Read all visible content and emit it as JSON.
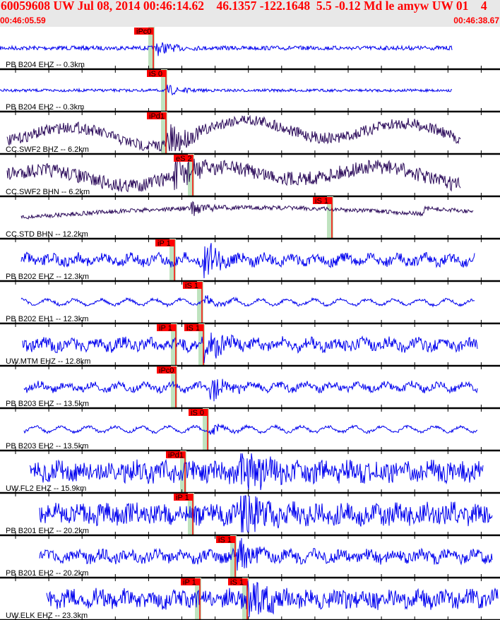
{
  "header": {
    "title": "60059608 UW Jul 08, 2014 00:46:14.62    46.1357 -122.1648  5.5 -0.12 Md le amyw UW 01    4",
    "start_time": "00:46:05.59",
    "end_time": "00:46:38.67"
  },
  "colors": {
    "trace_blue": "#0000ee",
    "trace_dark": "#2b0a5a",
    "pick": "#ff0000",
    "window": "#bfe3bf",
    "header_text": "#ff0000"
  },
  "channels": [
    {
      "label": "PB B204 EHZ -- 0.3km",
      "color": "trace_blue",
      "picks": [
        "iPc0"
      ]
    },
    {
      "label": "PB B204 EH2 -- 0.3km",
      "color": "trace_blue",
      "picks": [
        "iS 0"
      ]
    },
    {
      "label": "CC.SWF2 BHZ -- 6.2km",
      "color": "trace_dark",
      "picks": [
        "iPd1"
      ]
    },
    {
      "label": "CC.SWF2 BHN -- 6.2km",
      "color": "trace_dark",
      "picks": [
        "eS 2"
      ]
    },
    {
      "label": "CC.STD BHN -- 12.2km",
      "color": "trace_dark",
      "picks": [
        "iS 1"
      ]
    },
    {
      "label": "PB B202 EHZ -- 12.3km",
      "color": "trace_blue",
      "picks": [
        "iP 1"
      ]
    },
    {
      "label": "PB B202 EH1 -- 12.3km",
      "color": "trace_blue",
      "picks": [
        "iS 1"
      ]
    },
    {
      "label": "UW.MTM EHZ -- 12.8km",
      "color": "trace_blue",
      "picks": [
        "iP 1",
        "iS 1"
      ]
    },
    {
      "label": "PB B203 EHZ -- 13.5km",
      "color": "trace_blue",
      "picks": [
        "iPc0"
      ]
    },
    {
      "label": "PB B203 EH2 -- 13.5km",
      "color": "trace_blue",
      "picks": [
        "iS 0"
      ]
    },
    {
      "label": "UW.FL2 EHZ -- 15.9km",
      "color": "trace_blue",
      "picks": [
        "iPd1"
      ]
    },
    {
      "label": "PB B201 EHZ -- 20.2km",
      "color": "trace_blue",
      "picks": [
        "iP 1"
      ]
    },
    {
      "label": "PB B201 EH2 -- 20.2km",
      "color": "trace_blue",
      "picks": [
        "iS 1"
      ]
    },
    {
      "label": "UW.ELK EHZ -- 23.3km",
      "color": "trace_blue",
      "picks": [
        "iP 1",
        "iS 1"
      ]
    }
  ]
}
